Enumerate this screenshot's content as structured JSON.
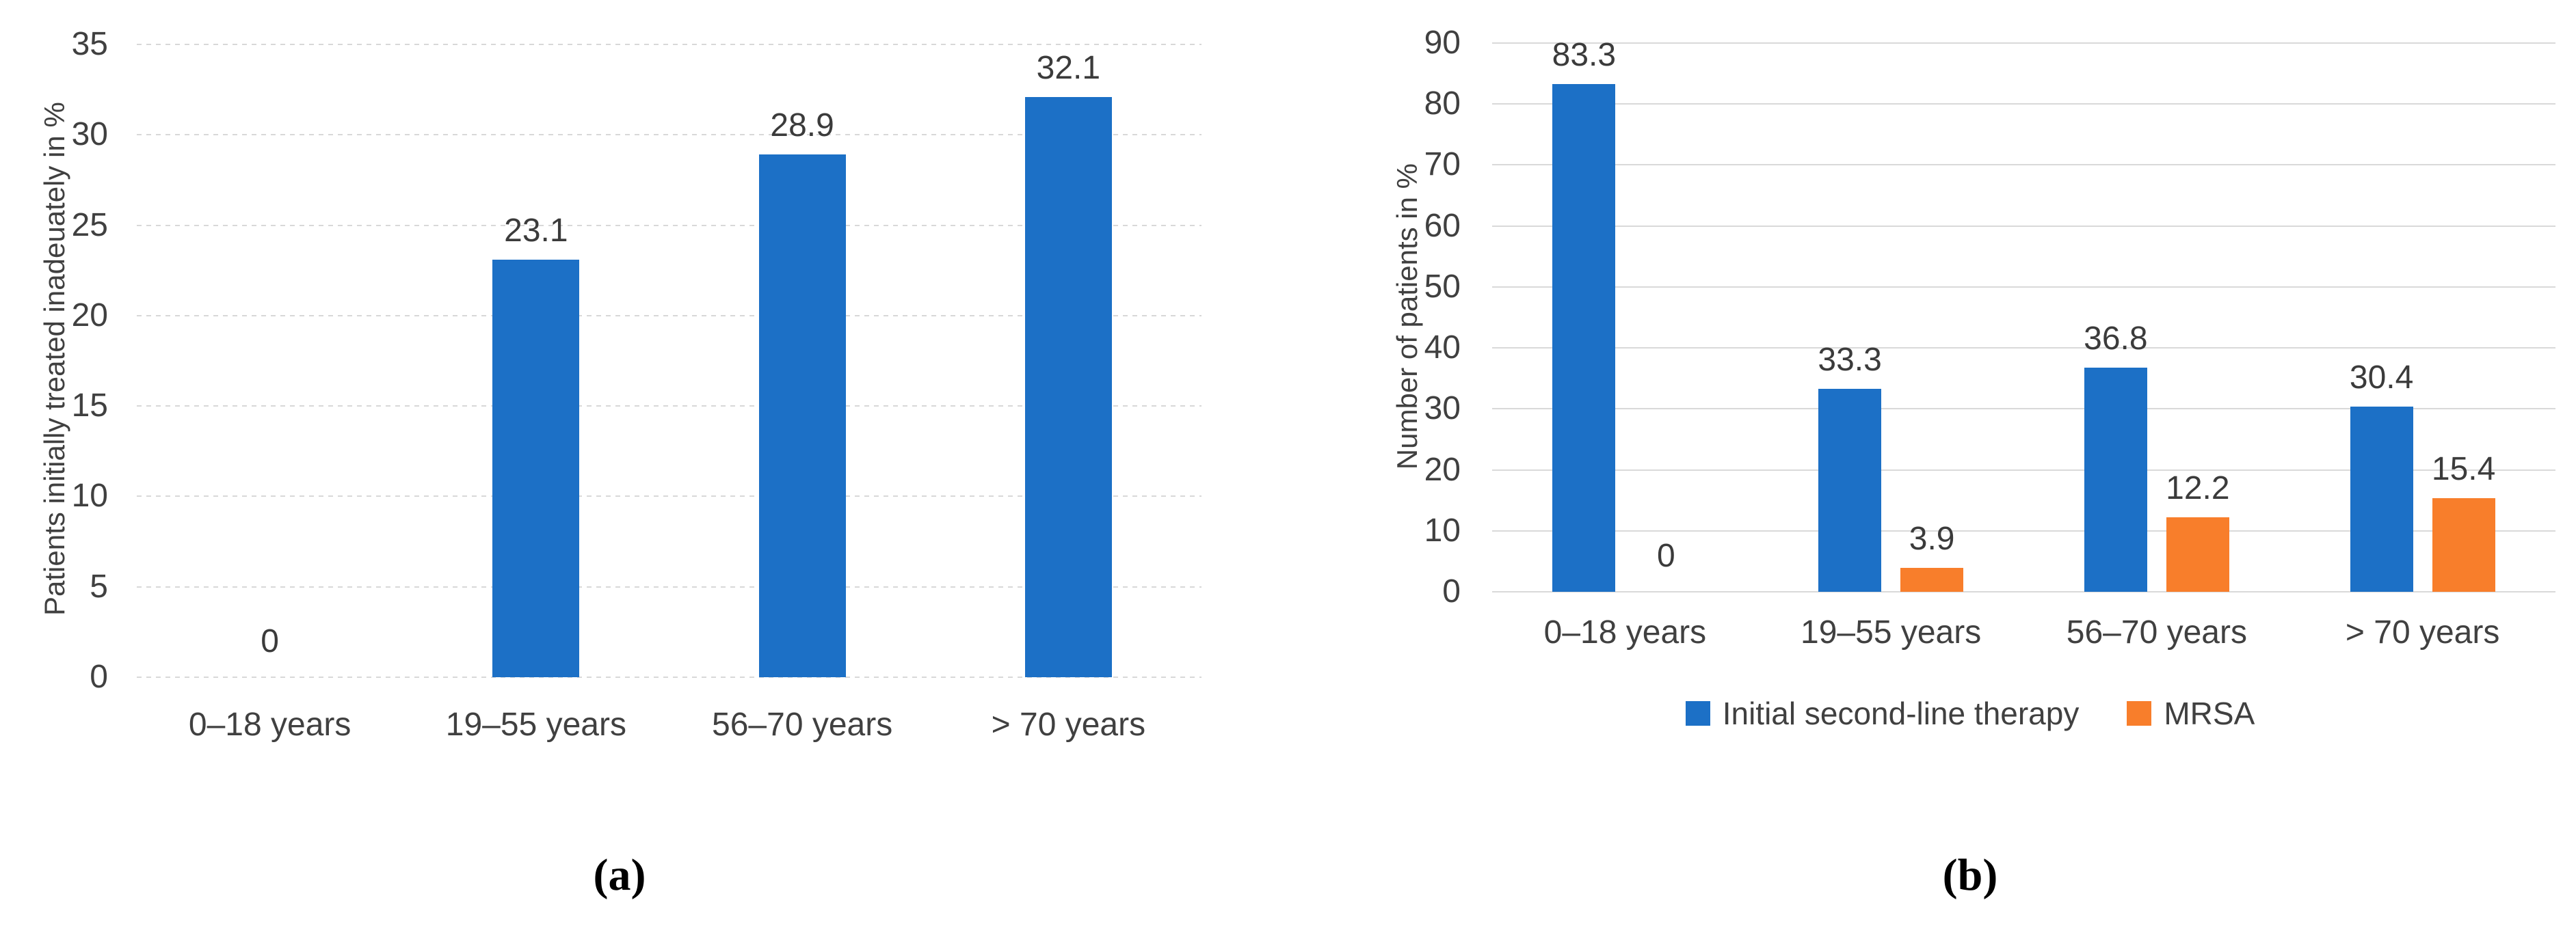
{
  "figure": {
    "captions": {
      "a": "(a)",
      "b": "(b)"
    }
  },
  "colors": {
    "series_blue": "#1C70C6",
    "series_orange": "#F87E2B",
    "gridline": "#D9D9D9",
    "axis_text": "#404040",
    "value_label_text": "#3B3B3B"
  },
  "chart_data": [
    {
      "id": "a",
      "type": "bar",
      "title": "",
      "xlabel": "",
      "ylabel": "Patients initially treated inadeuately in %",
      "categories": [
        "0–18 years",
        "19–55 years",
        "56–70 years",
        "> 70 years"
      ],
      "series": [
        {
          "color": "#1C70C6",
          "values": [
            0,
            23.1,
            28.9,
            32.1
          ],
          "value_labels": [
            "0",
            "23.1",
            "28.9",
            "32.1"
          ]
        }
      ],
      "ylim": [
        0,
        35
      ],
      "yticks": [
        0,
        5,
        10,
        15,
        20,
        25,
        30,
        35
      ],
      "grid_style": "dashed",
      "legend": null
    },
    {
      "id": "b",
      "type": "bar",
      "title": "",
      "xlabel": "",
      "ylabel": "Number of patients in %",
      "categories": [
        "0–18 years",
        "19–55 years",
        "56–70 years",
        "> 70 years"
      ],
      "series": [
        {
          "name": "Initial second-line therapy",
          "color": "#1C70C6",
          "values": [
            83.3,
            33.3,
            36.8,
            30.4
          ],
          "value_labels": [
            "83.3",
            "33.3",
            "36.8",
            "30.4"
          ]
        },
        {
          "name": "MRSA",
          "color": "#F87E2B",
          "values": [
            0,
            3.9,
            12.2,
            15.4
          ],
          "value_labels": [
            "0",
            "3.9",
            "12.2",
            "15.4"
          ]
        }
      ],
      "ylim": [
        0,
        90
      ],
      "yticks": [
        0,
        10,
        20,
        30,
        40,
        50,
        60,
        70,
        80,
        90
      ],
      "grid_style": "solid",
      "legend": {
        "position": "bottom",
        "entries": [
          "Initial second-line therapy",
          "MRSA"
        ]
      }
    }
  ]
}
